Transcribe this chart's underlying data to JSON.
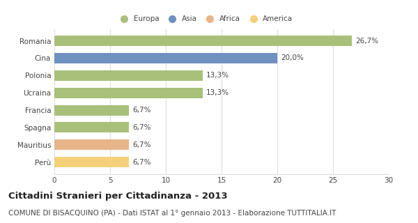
{
  "categories": [
    "Romania",
    "Cina",
    "Polonia",
    "Ucraina",
    "Francia",
    "Spagna",
    "Mauritius",
    "Perù"
  ],
  "values": [
    26.7,
    20.0,
    13.3,
    13.3,
    6.7,
    6.7,
    6.7,
    6.7
  ],
  "labels": [
    "26,7%",
    "20,0%",
    "13,3%",
    "13,3%",
    "6,7%",
    "6,7%",
    "6,7%",
    "6,7%"
  ],
  "bar_colors": [
    "#a8c07a",
    "#7090c0",
    "#a8c07a",
    "#a8c07a",
    "#a8c07a",
    "#a8c07a",
    "#e8b48a",
    "#f5d07a"
  ],
  "legend_labels": [
    "Europa",
    "Asia",
    "Africa",
    "America"
  ],
  "legend_colors": [
    "#a8c07a",
    "#7090c0",
    "#e8b48a",
    "#f5d07a"
  ],
  "xlim": [
    0,
    30
  ],
  "xticks": [
    0,
    5,
    10,
    15,
    20,
    25,
    30
  ],
  "title": "Cittadini Stranieri per Cittadinanza - 2013",
  "subtitle": "COMUNE DI BISACQUINO (PA) - Dati ISTAT al 1° gennaio 2013 - Elaborazione TUTTITALIA.IT",
  "title_fontsize": 9.5,
  "subtitle_fontsize": 7.5,
  "label_fontsize": 7.5,
  "tick_fontsize": 7.5,
  "background_color": "#ffffff",
  "grid_color": "#dddddd",
  "bar_height": 0.6
}
